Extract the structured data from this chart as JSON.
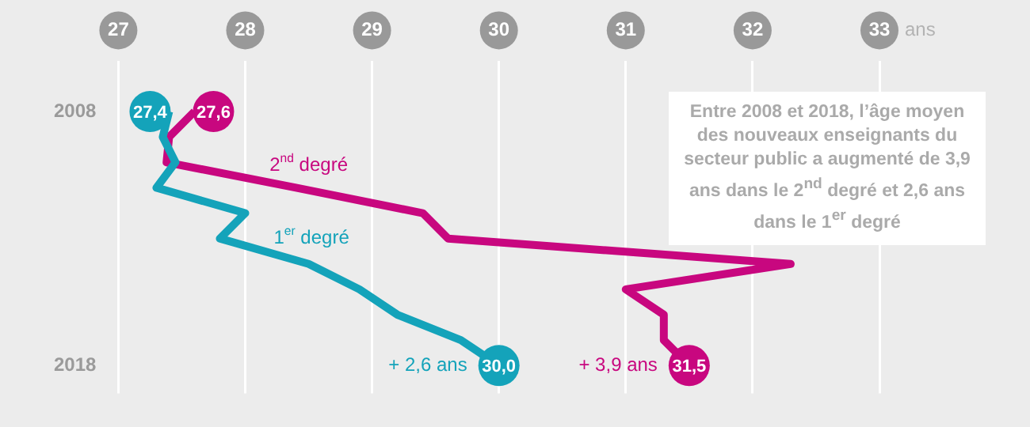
{
  "chart_data": {
    "type": "line",
    "xlabel": "ans",
    "series": [
      {
        "name": "1$^{er}$ degré",
        "color": "#14a3ba",
        "x": [
          27.4,
          27.35,
          27.45,
          27.3,
          28.0,
          27.8,
          28.5,
          28.9,
          29.2,
          29.7,
          30.0
        ],
        "values": [
          2008,
          2009,
          2010,
          2011,
          2012,
          2013,
          2014,
          2015,
          2016,
          2017,
          2018
        ]
      },
      {
        "name": "2$^{nd}$ degré",
        "color": "#c8077f",
        "x": [
          27.6,
          27.4,
          27.38,
          28.4,
          29.4,
          29.6,
          32.3,
          31.0,
          31.3,
          31.3,
          31.5
        ],
        "values": [
          2008,
          2009,
          2010,
          2011,
          2012,
          2013,
          2014,
          2015,
          2016,
          2017,
          2018
        ]
      }
    ],
    "xlim": [
      27,
      33
    ],
    "xticks": [
      27,
      28,
      29,
      30,
      31,
      32,
      33
    ],
    "ylim": [
      2019.1,
      2006.0
    ],
    "yticks": [
      2008,
      2018
    ],
    "grid": "x",
    "legend": false,
    "marker": "none",
    "line_style": "solid",
    "annotations": [
      "Entre 2008 et 2018, l’âge moyen des nouveaux enseignants du secteur public a augmenté de 3,9 ans dans le 2$^{nd}$ degré et 2,6 ans dans le 1$^{er}$ degré",
      "+ 2,6 ans",
      "+ 3,9 ans",
      {
        "text": "27,4",
        "x": 27.4,
        "y": 2008
      },
      {
        "text": "27,6",
        "x": 27.6,
        "y": 2008
      },
      {
        "text": "30,0",
        "x": 30.0,
        "y": 2018
      },
      {
        "text": "31,5",
        "x": 31.5,
        "y": 2018
      }
    ]
  }
}
